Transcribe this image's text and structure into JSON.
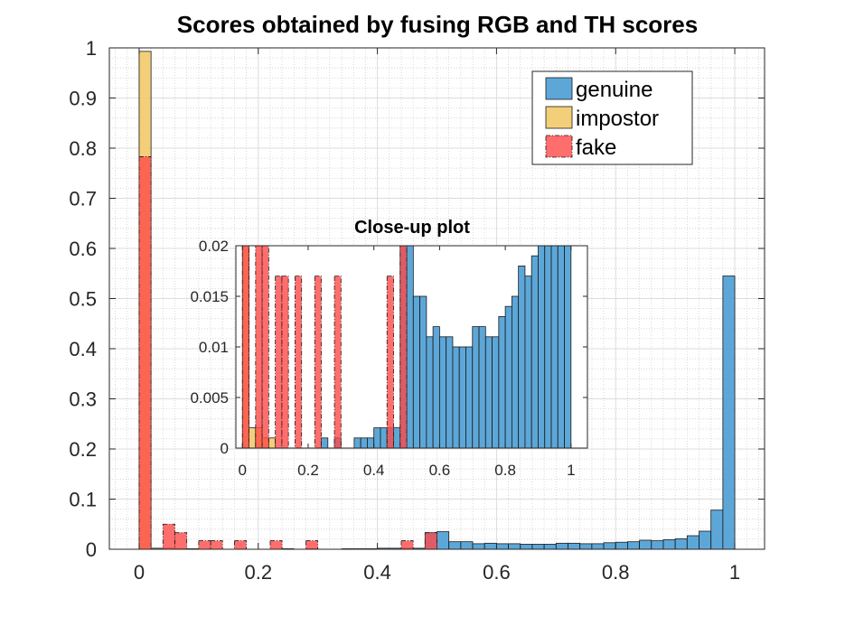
{
  "chart_data": [
    {
      "type": "histogram",
      "title": "Scores obtained by fusing RGB and TH scores",
      "xlabel": "",
      "ylabel": "",
      "xlim": [
        -0.05,
        1.05
      ],
      "ylim": [
        0,
        1
      ],
      "x_ticks": [
        "0",
        "0.2",
        "0.4",
        "0.6",
        "0.8",
        "1"
      ],
      "y_ticks": [
        "0",
        "0.1",
        "0.2",
        "0.3",
        "0.4",
        "0.5",
        "0.6",
        "0.7",
        "0.8",
        "0.9",
        "1"
      ],
      "grid": true,
      "minor_grid": true,
      "legend_position": "top-right",
      "bin_width": 0.02,
      "series": [
        {
          "name": "genuine",
          "color": "#4f9fd5",
          "bars": [
            {
              "x": 0.25,
              "y": 0.001
            },
            {
              "x": 0.29,
              "y": 0.001
            },
            {
              "x": 0.35,
              "y": 0.001
            },
            {
              "x": 0.37,
              "y": 0.001
            },
            {
              "x": 0.39,
              "y": 0.001
            },
            {
              "x": 0.41,
              "y": 0.002
            },
            {
              "x": 0.43,
              "y": 0.002
            },
            {
              "x": 0.45,
              "y": 0.002
            },
            {
              "x": 0.47,
              "y": 0.002
            },
            {
              "x": 0.49,
              "y": 0.033
            },
            {
              "x": 0.51,
              "y": 0.035
            },
            {
              "x": 0.53,
              "y": 0.015
            },
            {
              "x": 0.55,
              "y": 0.015
            },
            {
              "x": 0.57,
              "y": 0.011
            },
            {
              "x": 0.59,
              "y": 0.012
            },
            {
              "x": 0.61,
              "y": 0.011
            },
            {
              "x": 0.63,
              "y": 0.011
            },
            {
              "x": 0.65,
              "y": 0.01
            },
            {
              "x": 0.67,
              "y": 0.01
            },
            {
              "x": 0.69,
              "y": 0.01
            },
            {
              "x": 0.71,
              "y": 0.012
            },
            {
              "x": 0.73,
              "y": 0.012
            },
            {
              "x": 0.75,
              "y": 0.011
            },
            {
              "x": 0.77,
              "y": 0.011
            },
            {
              "x": 0.79,
              "y": 0.013
            },
            {
              "x": 0.81,
              "y": 0.014
            },
            {
              "x": 0.83,
              "y": 0.015
            },
            {
              "x": 0.85,
              "y": 0.018
            },
            {
              "x": 0.87,
              "y": 0.017
            },
            {
              "x": 0.89,
              "y": 0.019
            },
            {
              "x": 0.91,
              "y": 0.021
            },
            {
              "x": 0.93,
              "y": 0.027
            },
            {
              "x": 0.95,
              "y": 0.036
            },
            {
              "x": 0.97,
              "y": 0.078
            },
            {
              "x": 0.99,
              "y": 0.545
            }
          ]
        },
        {
          "name": "impostor",
          "color": "#f2ca6b",
          "bars": [
            {
              "x": 0.01,
              "y": 0.993
            },
            {
              "x": 0.03,
              "y": 0.002
            },
            {
              "x": 0.05,
              "y": 0.002
            },
            {
              "x": 0.07,
              "y": 0.001
            },
            {
              "x": 0.09,
              "y": 0.001
            }
          ]
        },
        {
          "name": "fake",
          "color": "#fe4a49",
          "bars": [
            {
              "x": 0.01,
              "y": 0.783
            },
            {
              "x": 0.05,
              "y": 0.05
            },
            {
              "x": 0.07,
              "y": 0.033
            },
            {
              "x": 0.11,
              "y": 0.017
            },
            {
              "x": 0.13,
              "y": 0.017
            },
            {
              "x": 0.17,
              "y": 0.017
            },
            {
              "x": 0.23,
              "y": 0.017
            },
            {
              "x": 0.29,
              "y": 0.017
            },
            {
              "x": 0.45,
              "y": 0.017
            },
            {
              "x": 0.49,
              "y": 0.033
            }
          ]
        }
      ]
    },
    {
      "type": "histogram",
      "title": "Close-up plot",
      "xlabel": "",
      "ylabel": "",
      "xlim": [
        -0.02,
        1.05
      ],
      "ylim": [
        0,
        0.02
      ],
      "x_ticks": [
        "0",
        "0.2",
        "0.4",
        "0.6",
        "0.8",
        "1"
      ],
      "y_ticks": [
        "0",
        "0.005",
        "0.01",
        "0.015",
        "0.02"
      ],
      "grid": false,
      "location": "inset",
      "note": "zoom of the main histogram, same series clipped at 0.02"
    }
  ]
}
